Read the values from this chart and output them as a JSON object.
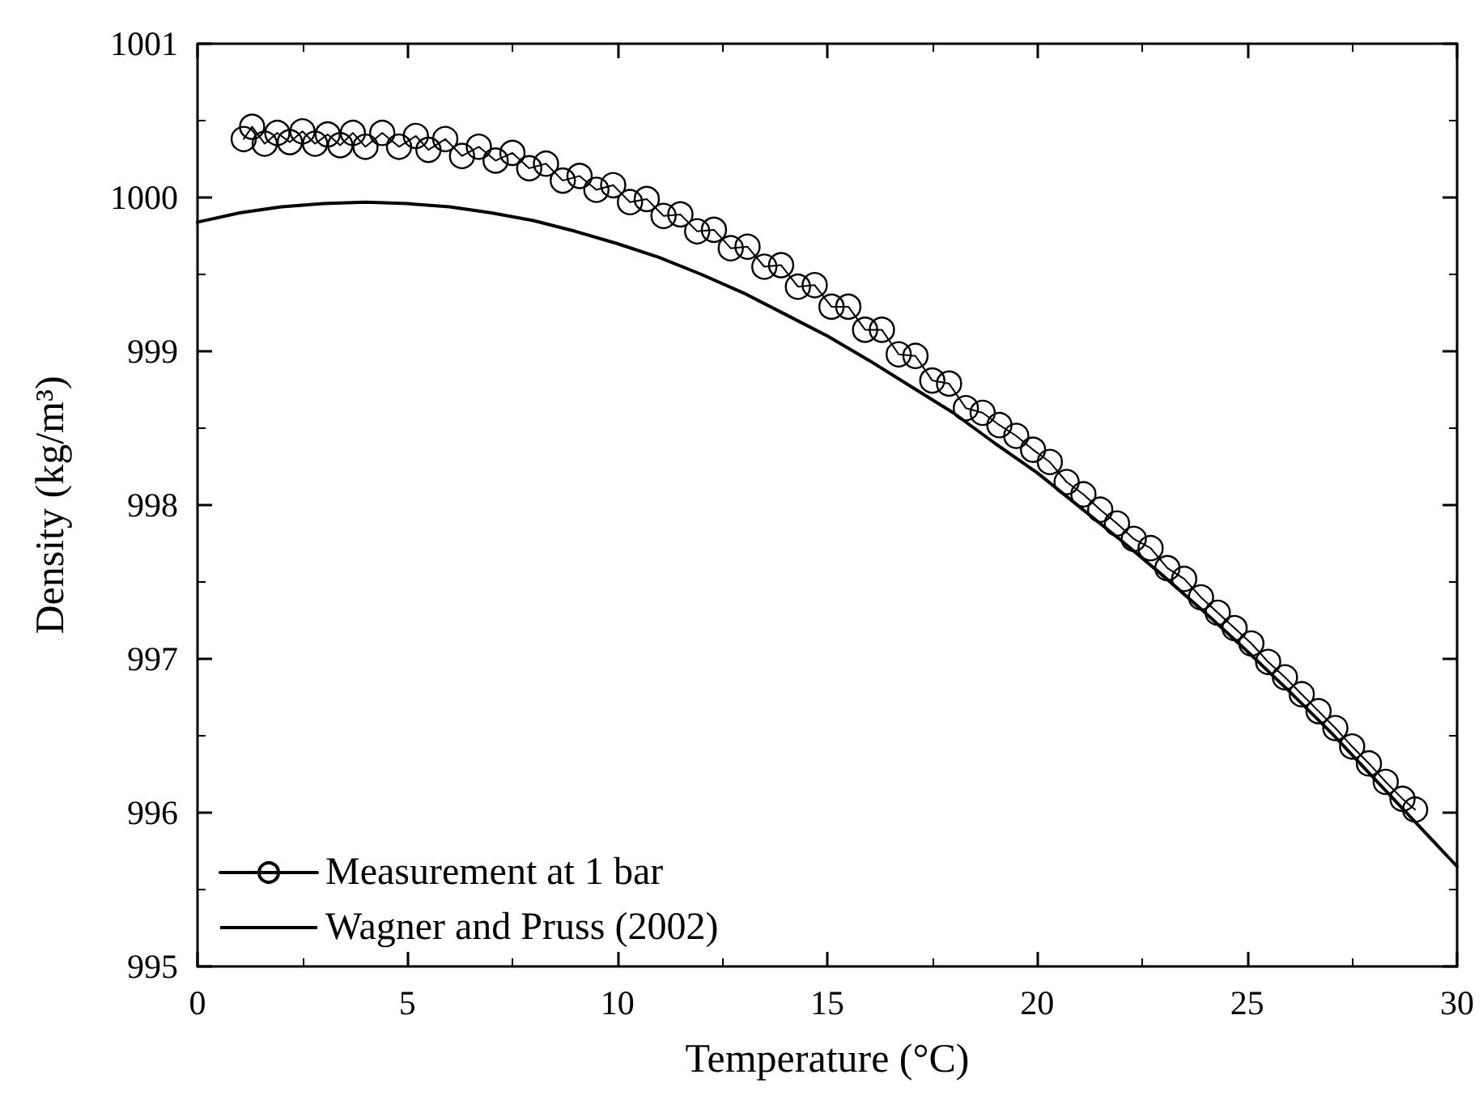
{
  "chart_data": {
    "type": "line",
    "xlabel": "Temperature (°C)",
    "ylabel": "Density (kg/m³)",
    "xlim": [
      0,
      30
    ],
    "xticks": [
      0,
      5,
      10,
      15,
      20,
      25,
      30
    ],
    "ylim": [
      995,
      1001
    ],
    "yticks": [
      995,
      996,
      997,
      998,
      999,
      1000,
      1001
    ],
    "grid": false,
    "legend": "bottom left",
    "series": [
      {
        "name": "Measurement at 1 bar",
        "color": "#000000",
        "marker": "circle",
        "line_style": "solid",
        "x": [
          1.1,
          1.3,
          1.6,
          1.9,
          2.2,
          2.5,
          2.8,
          3.1,
          3.4,
          3.7,
          4.0,
          4.4,
          4.8,
          5.2,
          5.5,
          5.9,
          6.3,
          6.7,
          7.1,
          7.5,
          7.9,
          8.3,
          8.7,
          9.1,
          9.5,
          9.9,
          10.3,
          10.7,
          11.1,
          11.5,
          11.9,
          12.3,
          12.7,
          13.1,
          13.5,
          13.9,
          14.3,
          14.7,
          15.1,
          15.5,
          15.9,
          16.3,
          16.7,
          17.1,
          17.5,
          17.9,
          18.3,
          18.7,
          19.1,
          19.5,
          19.9,
          20.3,
          20.7,
          21.1,
          21.5,
          21.9,
          22.3,
          22.7,
          23.1,
          23.5,
          23.9,
          24.3,
          24.7,
          25.1,
          25.5,
          25.9,
          26.3,
          26.7,
          27.1,
          27.5,
          27.9,
          28.3,
          28.7,
          29.0
        ],
        "values": [
          1000.38,
          1000.46,
          1000.35,
          1000.42,
          1000.36,
          1000.43,
          1000.35,
          1000.41,
          1000.34,
          1000.42,
          1000.33,
          1000.42,
          1000.33,
          1000.4,
          1000.31,
          1000.38,
          1000.27,
          1000.33,
          1000.24,
          1000.29,
          1000.19,
          1000.22,
          1000.11,
          1000.14,
          1000.05,
          1000.08,
          999.97,
          999.99,
          999.88,
          999.89,
          999.78,
          999.79,
          999.67,
          999.68,
          999.55,
          999.56,
          999.42,
          999.43,
          999.29,
          999.29,
          999.14,
          999.14,
          998.98,
          998.97,
          998.81,
          998.79,
          998.63,
          998.6,
          998.52,
          998.45,
          998.36,
          998.28,
          998.15,
          998.07,
          997.97,
          997.88,
          997.78,
          997.72,
          997.59,
          997.52,
          997.4,
          997.3,
          997.2,
          997.1,
          996.98,
          996.88,
          996.77,
          996.66,
          996.55,
          996.43,
          996.32,
          996.2,
          996.09,
          996.02
        ]
      },
      {
        "name": "Wagner and Pruss (2002)",
        "color": "#000000",
        "marker": "none",
        "line_style": "solid",
        "x": [
          0,
          1,
          2,
          3,
          4,
          5,
          6,
          7,
          8,
          9,
          10,
          11,
          12,
          13,
          14,
          15,
          16,
          17,
          18,
          19,
          20,
          21,
          22,
          23,
          24,
          25,
          26,
          27,
          28,
          29,
          30
        ],
        "values": [
          999.84,
          999.9,
          999.94,
          999.96,
          999.97,
          999.96,
          999.94,
          999.9,
          999.85,
          999.78,
          999.7,
          999.61,
          999.5,
          999.38,
          999.24,
          999.1,
          998.94,
          998.77,
          998.6,
          998.4,
          998.21,
          997.99,
          997.77,
          997.54,
          997.3,
          997.05,
          996.79,
          996.52,
          996.23,
          995.94,
          995.65
        ]
      }
    ]
  }
}
